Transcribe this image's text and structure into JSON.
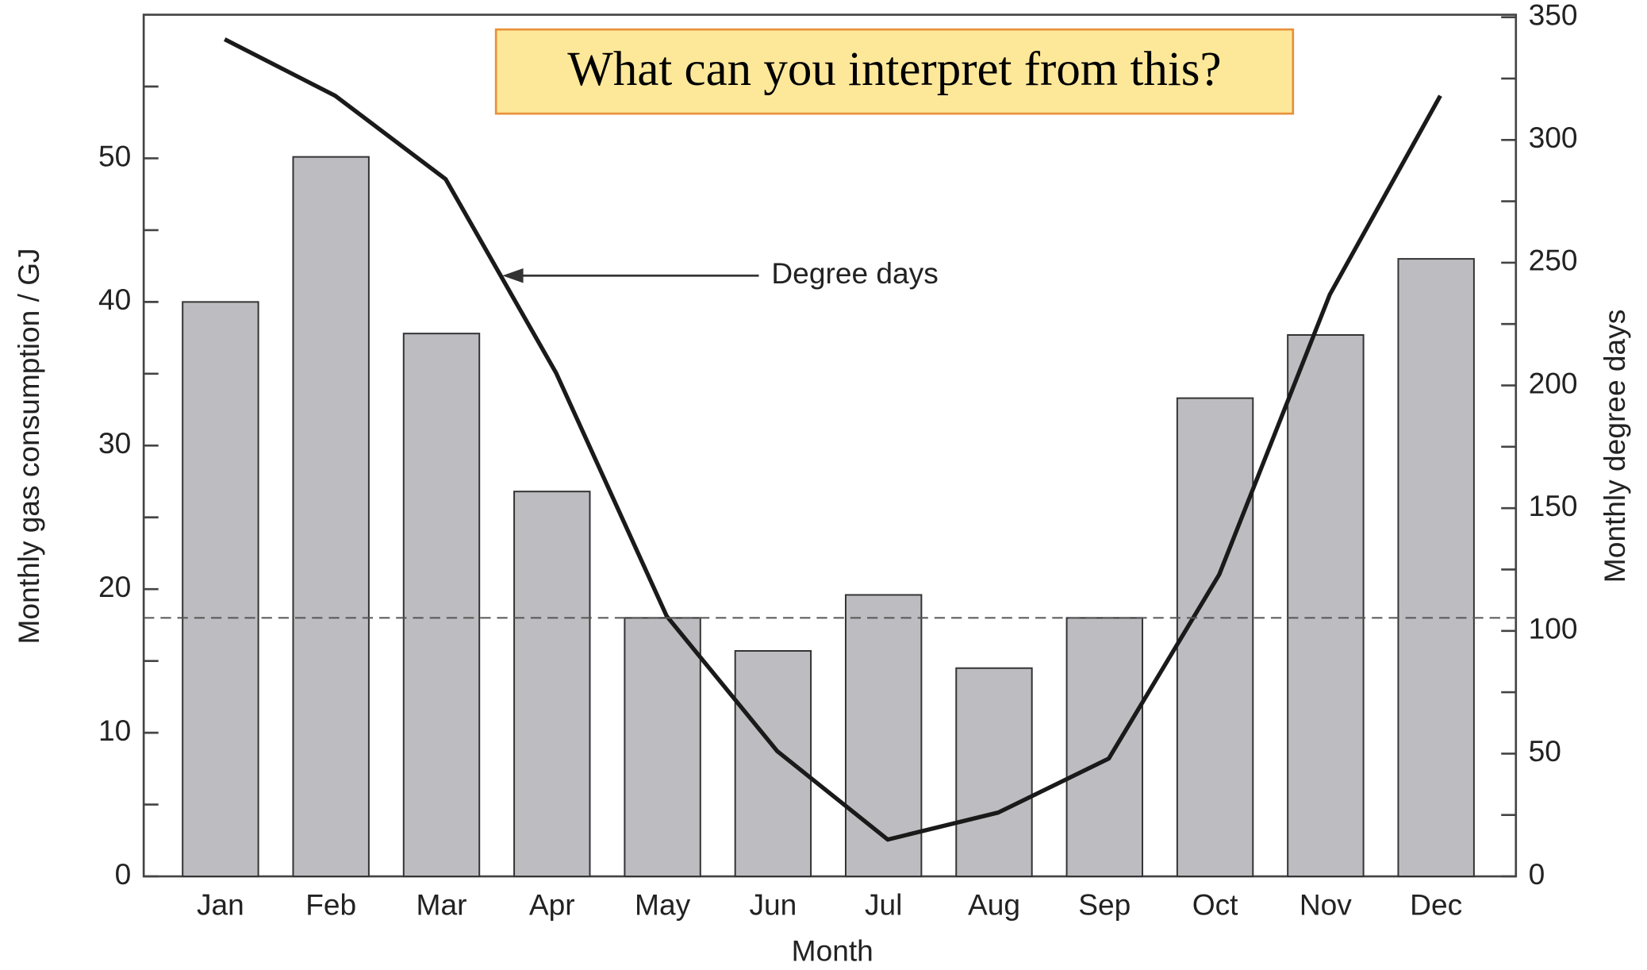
{
  "chart_data": {
    "type": "bar",
    "annotation": "What can you interpret from this?",
    "line_label": "Degree days",
    "x_label": "Month",
    "y_label": "Monthly gas consumption / GJ",
    "y2_label": "Monthly degree days",
    "categories": [
      "Jan",
      "Feb",
      "Mar",
      "Apr",
      "May",
      "Jun",
      "Jul",
      "Aug",
      "Sep",
      "Oct",
      "Nov",
      "Dec"
    ],
    "series": [
      {
        "name": "Monthly gas consumption",
        "type": "bar",
        "color": "#bdbdc1",
        "values": [
          40,
          50.1,
          37.8,
          26.8,
          18,
          15.7,
          19.6,
          14.5,
          18,
          33.3,
          37.7,
          43
        ]
      },
      {
        "name": "Degree days",
        "type": "line",
        "axis": "y2",
        "color": "#1a1a1a",
        "values": [
          341,
          318,
          284,
          205,
          106,
          51,
          15,
          26,
          48,
          123,
          237,
          318
        ]
      }
    ],
    "ylim": [
      0,
      60
    ],
    "yticks": [
      0,
      10,
      20,
      30,
      40,
      50
    ],
    "yminorticks": [
      5,
      15,
      25,
      35,
      45,
      55
    ],
    "y2lim": [
      0,
      351
    ],
    "y2ticks": [
      0,
      50,
      100,
      150,
      200,
      250,
      300,
      350
    ],
    "y2minorticks": [
      25,
      75,
      125,
      175,
      225,
      275,
      325
    ],
    "reference_line": 18
  }
}
